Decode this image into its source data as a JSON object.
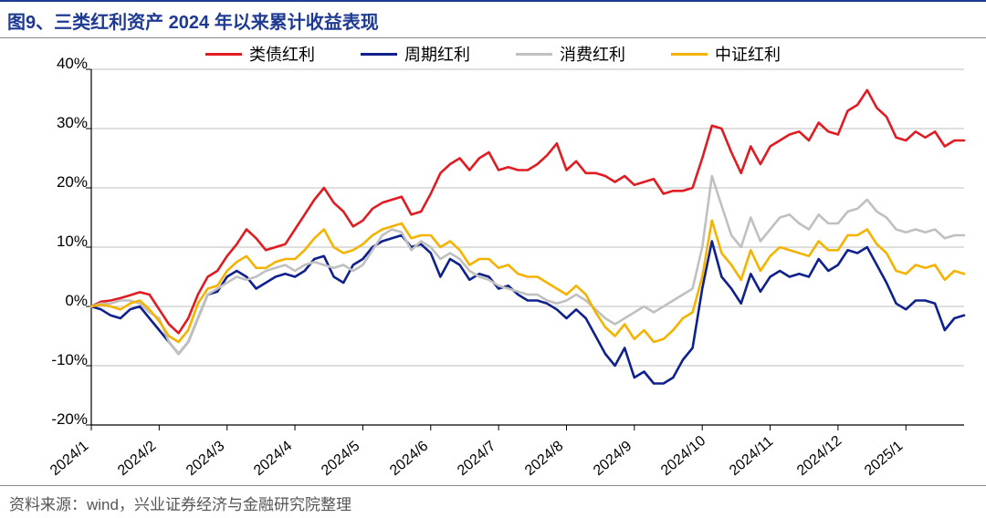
{
  "figure_number": "图9、",
  "title": "三类红利资产 2024 年以来累计收益表现",
  "source_label": "资料来源：",
  "source_text": "wind，兴业证券经济与金融研究院整理",
  "chart": {
    "type": "line",
    "background_color": "#ffffff",
    "grid_color": "#bfbfbf",
    "axis_color": "#000000",
    "ylabel_suffix": "%",
    "ylim": [
      -20,
      40
    ],
    "ytick_step": 10,
    "yticks": [
      "-20%",
      "-10%",
      "0%",
      "10%",
      "20%",
      "30%",
      "40%"
    ],
    "x_categories": [
      "2024/1",
      "2024/2",
      "2024/3",
      "2024/4",
      "2024/5",
      "2024/6",
      "2024/7",
      "2024/8",
      "2024/9",
      "2024/10",
      "2024/11",
      "2024/12",
      "2025/1"
    ],
    "x_points_per_month": 7,
    "line_width": 2.6,
    "label_fontsize": 17,
    "title_fontsize": 20,
    "title_color": "#1f3a93",
    "series": [
      {
        "key": "leizhai",
        "label": "类债红利",
        "color": "#e11b22",
        "values_pct": [
          0.0,
          0.8,
          1.0,
          1.4,
          1.9,
          2.4,
          2.0,
          -0.5,
          -3.0,
          -4.5,
          -2.0,
          2.0,
          5.0,
          6.0,
          8.5,
          10.5,
          13.0,
          11.5,
          9.5,
          10.0,
          10.5,
          13.0,
          15.5,
          18.0,
          20.0,
          17.5,
          16.0,
          13.5,
          14.5,
          16.5,
          17.5,
          18.0,
          18.5,
          15.5,
          16.0,
          19.0,
          22.5,
          24.0,
          25.0,
          23.0,
          25.0,
          26.0,
          23.0,
          23.5,
          23.0,
          23.0,
          24.0,
          25.5,
          27.5,
          23.0,
          24.5,
          22.5,
          22.5,
          22.0,
          21.0,
          22.0,
          20.5,
          21.0,
          21.5,
          19.0,
          19.5,
          19.5,
          20.0,
          25.0,
          30.5,
          30.0,
          26.0,
          22.5,
          27.0,
          24.0,
          27.0,
          28.0,
          29.0,
          29.5,
          28.0,
          31.0,
          29.5,
          29.0,
          33.0,
          34.0,
          36.5,
          33.5,
          32.0,
          28.5,
          28.0,
          29.5,
          28.5,
          29.5,
          27.0,
          28.0,
          28.0
        ]
      },
      {
        "key": "zhouqi",
        "label": "周期红利",
        "color": "#10218b",
        "values_pct": [
          0.0,
          -0.5,
          -1.5,
          -2.0,
          -0.5,
          0.0,
          -2.0,
          -4.0,
          -6.0,
          -8.0,
          -6.0,
          -2.0,
          2.0,
          2.5,
          5.0,
          6.0,
          5.0,
          3.0,
          4.0,
          5.0,
          5.5,
          5.0,
          6.0,
          8.0,
          8.5,
          5.0,
          4.0,
          7.0,
          8.0,
          10.0,
          11.0,
          11.5,
          12.0,
          10.0,
          10.5,
          9.0,
          5.0,
          8.0,
          7.0,
          4.5,
          5.5,
          5.0,
          3.0,
          3.5,
          2.0,
          1.0,
          1.0,
          0.5,
          -0.5,
          -2.0,
          -0.5,
          -2.0,
          -5.0,
          -8.0,
          -10.0,
          -7.0,
          -12.0,
          -11.0,
          -13.0,
          -13.0,
          -12.0,
          -9.0,
          -7.0,
          3.0,
          11.0,
          5.0,
          3.0,
          0.5,
          5.5,
          2.5,
          5.0,
          6.0,
          5.0,
          5.5,
          5.0,
          8.0,
          6.0,
          7.0,
          9.5,
          9.0,
          10.0,
          7.0,
          4.0,
          0.5,
          -0.5,
          1.0,
          1.0,
          0.5,
          -4.0,
          -2.0,
          -1.5
        ]
      },
      {
        "key": "xiaofei",
        "label": "消费红利",
        "color": "#c0c0c0",
        "values_pct": [
          0.0,
          0.5,
          0.5,
          1.0,
          1.0,
          0.5,
          -1.0,
          -2.0,
          -6.0,
          -8.0,
          -6.0,
          -2.0,
          2.0,
          3.0,
          4.0,
          5.0,
          4.5,
          5.0,
          6.0,
          6.5,
          7.0,
          6.0,
          7.0,
          7.5,
          7.0,
          6.5,
          7.0,
          6.0,
          7.0,
          9.5,
          12.0,
          13.0,
          12.5,
          9.5,
          11.0,
          10.0,
          8.0,
          9.0,
          8.0,
          6.0,
          5.0,
          4.5,
          3.5,
          3.0,
          2.5,
          2.0,
          2.0,
          1.0,
          0.5,
          1.0,
          2.0,
          1.0,
          -0.5,
          -2.0,
          -3.0,
          -2.0,
          -1.0,
          0.0,
          -1.0,
          0.0,
          1.0,
          2.0,
          3.0,
          10.0,
          22.0,
          17.0,
          12.0,
          10.0,
          15.0,
          11.0,
          13.0,
          15.0,
          15.5,
          14.0,
          13.0,
          15.5,
          14.0,
          14.0,
          16.0,
          16.5,
          18.0,
          16.0,
          15.0,
          13.0,
          12.5,
          13.0,
          12.5,
          13.0,
          11.5,
          12.0,
          12.0
        ]
      },
      {
        "key": "zhongzheng",
        "label": "中证红利",
        "color": "#f5b301",
        "values_pct": [
          0.0,
          0.3,
          0.0,
          -0.5,
          0.5,
          1.0,
          -0.5,
          -2.5,
          -5.0,
          -6.0,
          -4.0,
          0.5,
          3.0,
          3.5,
          6.0,
          7.5,
          8.5,
          6.5,
          6.5,
          7.5,
          8.0,
          8.0,
          9.5,
          11.5,
          13.0,
          10.0,
          9.0,
          9.5,
          10.5,
          12.0,
          13.0,
          13.5,
          14.0,
          11.5,
          12.0,
          12.0,
          10.0,
          11.0,
          9.5,
          7.0,
          8.0,
          8.0,
          6.5,
          7.0,
          5.5,
          5.0,
          5.0,
          4.0,
          3.0,
          2.0,
          3.5,
          2.0,
          -1.0,
          -3.5,
          -5.0,
          -3.0,
          -5.5,
          -4.0,
          -6.0,
          -5.5,
          -4.0,
          -2.0,
          -1.0,
          5.0,
          14.5,
          9.0,
          7.0,
          4.5,
          9.5,
          6.0,
          8.5,
          10.0,
          9.5,
          9.0,
          8.5,
          11.0,
          9.5,
          9.5,
          12.0,
          12.0,
          13.0,
          10.5,
          9.0,
          6.0,
          5.5,
          7.0,
          6.5,
          7.0,
          4.5,
          6.0,
          5.5
        ]
      }
    ]
  }
}
